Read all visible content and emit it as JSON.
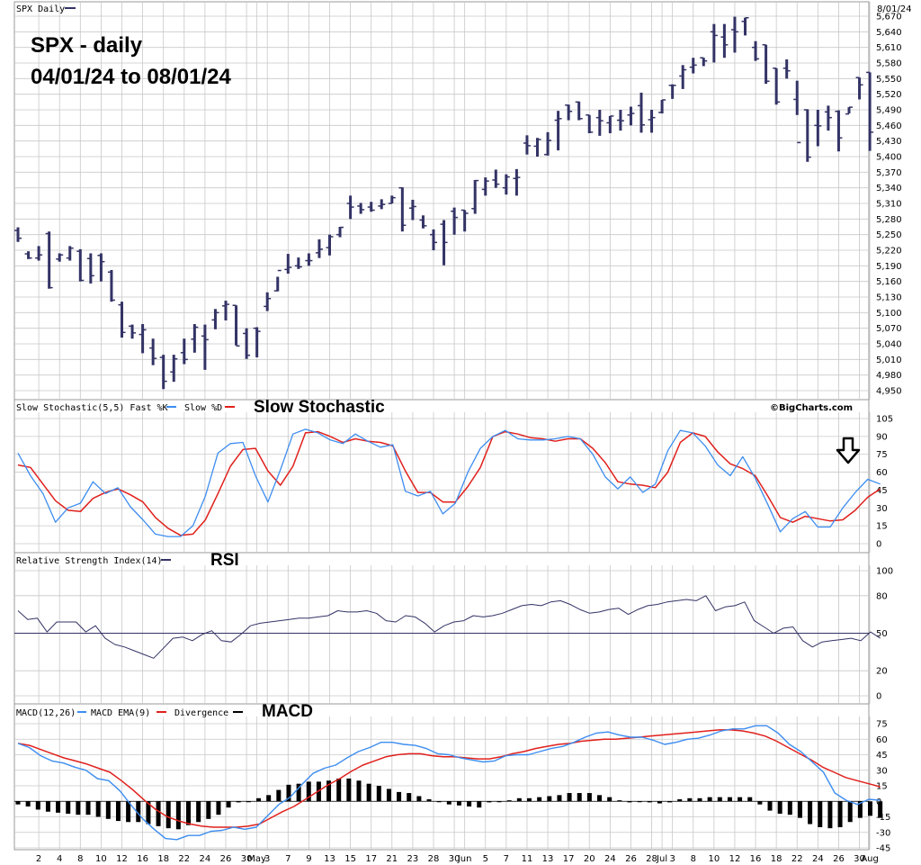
{
  "header": {
    "price_label": "SPX Daily",
    "date_right": "8/01/24",
    "title_line1": "SPX - daily",
    "title_line2": "04/01/24 to 08/01/24",
    "stoch_label": "Slow Stochastic(5,5) Fast %K",
    "stoch_label2": "Slow %D",
    "stoch_anno": "Slow Stochastic",
    "credit": "©BigCharts.com",
    "rsi_label": "Relative Strength Index(14)",
    "rsi_anno": "RSI",
    "macd_label1": "MACD(12,26)",
    "macd_label2": "MACD EMA(9)",
    "macd_label3": "Divergence",
    "macd_anno": "MACD"
  },
  "colors": {
    "bar": "#333366",
    "fastK": "#3d8df0",
    "slowD": "#e0201c",
    "rsi": "#333366",
    "grid": "#c8c8c8",
    "divergence": "#000000",
    "arrow": "#000000"
  },
  "chart_data": [
    {
      "type": "ohlc",
      "name": "SPX Daily",
      "ylim": [
        4950,
        5670
      ],
      "yticks": [
        4950,
        4980,
        5010,
        5040,
        5070,
        5100,
        5130,
        5160,
        5190,
        5220,
        5250,
        5280,
        5310,
        5340,
        5370,
        5400,
        5430,
        5460,
        5490,
        5520,
        5550,
        5580,
        5610,
        5640,
        5670
      ],
      "x_labels": [
        {
          "i": 2,
          "t": "2"
        },
        {
          "i": 4,
          "t": "4"
        },
        {
          "i": 6,
          "t": "8"
        },
        {
          "i": 8,
          "t": "10"
        },
        {
          "i": 10,
          "t": "12"
        },
        {
          "i": 12,
          "t": "16"
        },
        {
          "i": 14,
          "t": "18"
        },
        {
          "i": 16,
          "t": "22"
        },
        {
          "i": 18,
          "t": "24"
        },
        {
          "i": 20,
          "t": "26"
        },
        {
          "i": 22,
          "t": "30"
        },
        {
          "i": 23,
          "t": "May"
        },
        {
          "i": 24,
          "t": "3"
        },
        {
          "i": 26,
          "t": "7"
        },
        {
          "i": 28,
          "t": "9"
        },
        {
          "i": 30,
          "t": "13"
        },
        {
          "i": 32,
          "t": "15"
        },
        {
          "i": 34,
          "t": "17"
        },
        {
          "i": 36,
          "t": "21"
        },
        {
          "i": 38,
          "t": "23"
        },
        {
          "i": 40,
          "t": "28"
        },
        {
          "i": 42,
          "t": "30"
        },
        {
          "i": 43,
          "t": "Jun"
        },
        {
          "i": 45,
          "t": "5"
        },
        {
          "i": 47,
          "t": "7"
        },
        {
          "i": 49,
          "t": "11"
        },
        {
          "i": 51,
          "t": "13"
        },
        {
          "i": 53,
          "t": "17"
        },
        {
          "i": 55,
          "t": "20"
        },
        {
          "i": 57,
          "t": "24"
        },
        {
          "i": 59,
          "t": "26"
        },
        {
          "i": 61,
          "t": "28"
        },
        {
          "i": 62,
          "t": "Jul"
        },
        {
          "i": 63,
          "t": "3"
        },
        {
          "i": 65,
          "t": "8"
        },
        {
          "i": 67,
          "t": "10"
        },
        {
          "i": 69,
          "t": "12"
        },
        {
          "i": 71,
          "t": "16"
        },
        {
          "i": 73,
          "t": "18"
        },
        {
          "i": 75,
          "t": "22"
        },
        {
          "i": 77,
          "t": "24"
        },
        {
          "i": 79,
          "t": "26"
        },
        {
          "i": 81,
          "t": "30"
        },
        {
          "i": 82,
          "t": "Aug"
        }
      ],
      "bars": [
        [
          5258,
          5264,
          5236,
          5243
        ],
        [
          5213,
          5218,
          5203,
          5205
        ],
        [
          5205,
          5228,
          5200,
          5211
        ],
        [
          5252,
          5256,
          5146,
          5148
        ],
        [
          5203,
          5214,
          5198,
          5211
        ],
        [
          5205,
          5228,
          5200,
          5224
        ],
        [
          5218,
          5222,
          5160,
          5162
        ],
        [
          5204,
          5214,
          5156,
          5171
        ],
        [
          5210,
          5214,
          5160,
          5198
        ],
        [
          5178,
          5182,
          5121,
          5124
        ],
        [
          5115,
          5121,
          5052,
          5062
        ],
        [
          5074,
          5077,
          5050,
          5061
        ],
        [
          5058,
          5078,
          5022,
          5067
        ],
        [
          5032,
          5050,
          4999,
          5012
        ],
        [
          5014,
          5019,
          4953,
          4968
        ],
        [
          4986,
          5019,
          4967,
          5011
        ],
        [
          5023,
          5050,
          5001,
          5010
        ],
        [
          5049,
          5078,
          5023,
          5072
        ],
        [
          5055,
          5077,
          4990,
          5048
        ],
        [
          5086,
          5107,
          5068,
          5100
        ],
        [
          5113,
          5123,
          5085,
          5116
        ],
        [
          5114,
          5114,
          5037,
          5036
        ],
        [
          5060,
          5070,
          5011,
          5018
        ],
        [
          5070,
          5072,
          5014,
          5064
        ],
        [
          5112,
          5139,
          5103,
          5127
        ],
        [
          5142,
          5169,
          5141,
          5181
        ],
        [
          5183,
          5213,
          5175,
          5187
        ],
        [
          5190,
          5206,
          5184,
          5188
        ],
        [
          5200,
          5214,
          5190,
          5200
        ],
        [
          5215,
          5241,
          5205,
          5222
        ],
        [
          5225,
          5250,
          5210,
          5246
        ],
        [
          5250,
          5265,
          5245,
          5264
        ],
        [
          5310,
          5325,
          5280,
          5303
        ],
        [
          5305,
          5311,
          5290,
          5298
        ],
        [
          5303,
          5313,
          5294,
          5297
        ],
        [
          5305,
          5318,
          5299,
          5308
        ],
        [
          5310,
          5325,
          5310,
          5321
        ],
        [
          5340,
          5341,
          5256,
          5268
        ],
        [
          5301,
          5317,
          5278,
          5304
        ],
        [
          5278,
          5287,
          5262,
          5267
        ],
        [
          5250,
          5260,
          5220,
          5235
        ],
        [
          5270,
          5278,
          5191,
          5235
        ],
        [
          5295,
          5302,
          5250,
          5283
        ],
        [
          5297,
          5297,
          5256,
          5291
        ],
        [
          5300,
          5355,
          5290,
          5354
        ],
        [
          5337,
          5360,
          5325,
          5353
        ],
        [
          5355,
          5375,
          5340,
          5347
        ],
        [
          5340,
          5366,
          5327,
          5361
        ],
        [
          5358,
          5376,
          5325,
          5360
        ],
        [
          5426,
          5441,
          5404,
          5421
        ],
        [
          5420,
          5436,
          5400,
          5433
        ],
        [
          5404,
          5447,
          5402,
          5431
        ],
        [
          5470,
          5488,
          5412,
          5473
        ],
        [
          5499,
          5500,
          5470,
          5487
        ],
        [
          5505,
          5506,
          5470,
          5473
        ],
        [
          5480,
          5480,
          5445,
          5447
        ],
        [
          5475,
          5490,
          5440,
          5469
        ],
        [
          5465,
          5478,
          5445,
          5478
        ],
        [
          5470,
          5490,
          5450,
          5469
        ],
        [
          5480,
          5496,
          5460,
          5483
        ],
        [
          5498,
          5523,
          5446,
          5461
        ],
        [
          5471,
          5490,
          5446,
          5475
        ],
        [
          5485,
          5509,
          5483,
          5509
        ],
        [
          5537,
          5539,
          5511,
          5537
        ],
        [
          5555,
          5576,
          5530,
          5567
        ],
        [
          5572,
          5590,
          5560,
          5576
        ],
        [
          5590,
          5590,
          5574,
          5584
        ],
        [
          5640,
          5655,
          5581,
          5633
        ],
        [
          5630,
          5655,
          5590,
          5615
        ],
        [
          5644,
          5669,
          5600,
          5640
        ],
        [
          5660,
          5667,
          5633,
          5667
        ],
        [
          5610,
          5622,
          5584,
          5588
        ],
        [
          5615,
          5615,
          5540,
          5545
        ],
        [
          5570,
          5570,
          5500,
          5505
        ],
        [
          5570,
          5587,
          5550,
          5565
        ],
        [
          5510,
          5546,
          5480,
          5427
        ],
        [
          5490,
          5491,
          5390,
          5399
        ],
        [
          5460,
          5490,
          5420,
          5459
        ],
        [
          5486,
          5498,
          5450,
          5475
        ],
        [
          5487,
          5489,
          5410,
          5436
        ],
        [
          5482,
          5495,
          5483,
          5495
        ],
        [
          5552,
          5552,
          5510,
          5538
        ],
        [
          5562,
          5562,
          5411,
          5447
        ]
      ]
    },
    {
      "type": "line",
      "name": "Slow Stochastic(5,5)",
      "ylim": [
        0,
        105
      ],
      "yticks": [
        0,
        15,
        30,
        45,
        60,
        75,
        90,
        105
      ],
      "series": [
        {
          "name": "Fast %K",
          "values": [
            76,
            57,
            42,
            18,
            30,
            34,
            52,
            42,
            47,
            31,
            20,
            8,
            6,
            6,
            15,
            40,
            76,
            84,
            85,
            57,
            35,
            62,
            92,
            96,
            93,
            87,
            84,
            92,
            86,
            81,
            83,
            44,
            40,
            44,
            25,
            34,
            60,
            80,
            90,
            95,
            88,
            87,
            87,
            88,
            90,
            88,
            75,
            56,
            46,
            56,
            43,
            50,
            78,
            95,
            93,
            82,
            66,
            57,
            73,
            55,
            33,
            10,
            21,
            27,
            14,
            14,
            30,
            43,
            54,
            50
          ]
        },
        {
          "name": "Slow %D",
          "values": [
            66,
            64,
            50,
            36,
            28,
            27,
            38,
            43,
            46,
            41,
            35,
            22,
            13,
            7,
            8,
            20,
            42,
            65,
            79,
            80,
            61,
            49,
            65,
            93,
            94,
            90,
            85,
            88,
            86,
            85,
            82,
            61,
            43,
            43,
            35,
            35,
            48,
            64,
            90,
            94,
            92,
            89,
            88,
            86,
            88,
            88,
            80,
            68,
            52,
            50,
            49,
            47,
            60,
            85,
            93,
            90,
            77,
            67,
            63,
            57,
            40,
            22,
            18,
            23,
            21,
            19,
            20,
            28,
            39,
            46
          ]
        }
      ],
      "arrow_at_end": true
    },
    {
      "type": "line",
      "name": "Relative Strength Index(14)",
      "ylim": [
        0,
        100
      ],
      "yticks": [
        0,
        20,
        50,
        80,
        100
      ],
      "reference_line": 50,
      "series": [
        {
          "name": "RSI",
          "values": [
            68,
            61,
            62,
            51,
            59,
            59,
            59,
            51,
            56,
            46,
            41,
            39,
            36,
            33,
            30,
            38,
            46,
            47,
            44,
            49,
            52,
            44,
            43,
            49,
            56,
            58,
            59,
            60,
            61,
            62,
            62,
            63,
            64,
            68,
            67,
            67,
            68,
            66,
            60,
            59,
            64,
            63,
            58,
            51,
            56,
            59,
            60,
            64,
            63,
            64,
            66,
            69,
            72,
            73,
            72,
            75,
            76,
            73,
            69,
            66,
            67,
            69,
            70,
            65,
            69,
            72,
            73,
            75,
            76,
            77,
            76,
            80,
            68,
            71,
            72,
            75,
            60,
            55,
            50,
            54,
            55,
            44,
            39,
            43,
            44,
            45,
            46,
            44,
            51,
            46
          ]
        }
      ]
    },
    {
      "type": "bar_line",
      "name": "MACD(12,26)",
      "ylim": [
        -45,
        75
      ],
      "yticks": [
        -45,
        -30,
        -15,
        0,
        15,
        30,
        45,
        60,
        75
      ],
      "series": [
        {
          "name": "MACD(12,26)",
          "values": [
            56,
            52,
            44,
            39,
            37,
            33,
            30,
            22,
            20,
            10,
            -4,
            -17,
            -27,
            -36,
            -37,
            -33,
            -33,
            -29,
            -28,
            -25,
            -27,
            -25,
            -14,
            -3,
            4,
            16,
            27,
            32,
            35,
            42,
            48,
            52,
            57,
            57,
            55,
            54,
            51,
            46,
            45,
            42,
            40,
            38,
            39,
            44,
            45,
            45,
            48,
            51,
            53,
            57,
            62,
            66,
            67,
            64,
            62,
            62,
            59,
            55,
            57,
            60,
            61,
            64,
            68,
            70,
            70,
            73,
            73,
            66,
            55,
            48,
            38,
            28,
            8,
            1,
            -3,
            2,
            1
          ]
        },
        {
          "name": "MACD EMA(9)",
          "values": [
            56,
            54,
            50,
            46,
            42,
            39,
            36,
            32,
            28,
            20,
            11,
            1,
            -8,
            -15,
            -19,
            -22,
            -24,
            -25,
            -25,
            -25,
            -24,
            -22,
            -16,
            -10,
            -5,
            2,
            9,
            16,
            22,
            29,
            35,
            39,
            43,
            45,
            46,
            46,
            44,
            43,
            43,
            42,
            41,
            41,
            43,
            46,
            48,
            51,
            53,
            55,
            56,
            58,
            59,
            60,
            60,
            61,
            62,
            63,
            64,
            65,
            66,
            67,
            68,
            69,
            69,
            68,
            66,
            63,
            58,
            52,
            46,
            40,
            33,
            28,
            23,
            20,
            17,
            14
          ]
        },
        {
          "name": "Divergence",
          "values": [
            -3,
            -5,
            -8,
            -10,
            -11,
            -12,
            -13,
            -13,
            -15,
            -17,
            -19,
            -20,
            -20,
            -22,
            -24,
            -26,
            -27,
            -23,
            -20,
            -17,
            -13,
            -6,
            -1,
            0,
            3,
            6,
            11,
            16,
            17,
            19,
            19,
            20,
            22,
            22,
            20,
            17,
            15,
            12,
            9,
            8,
            5,
            2,
            0,
            -3,
            -4,
            -5,
            -6,
            -1,
            0,
            1,
            3,
            3,
            4,
            5,
            6,
            8,
            8,
            8,
            6,
            4,
            1,
            -1,
            0,
            -1,
            -2,
            -1,
            2,
            3,
            3,
            4,
            4,
            4,
            4,
            4,
            -3,
            -9,
            -12,
            -13,
            -16,
            -22,
            -25,
            -26,
            -25,
            -20,
            -16,
            -14,
            -16
          ]
        }
      ]
    }
  ]
}
